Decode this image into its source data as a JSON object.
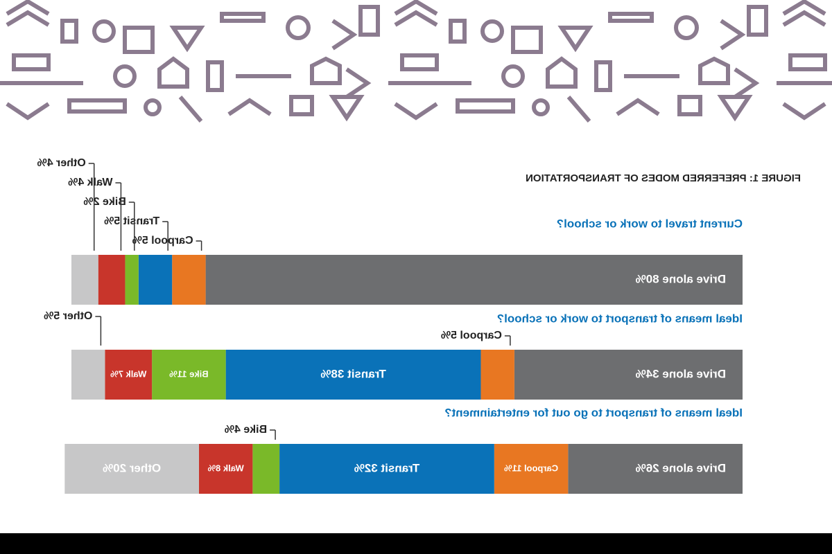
{
  "chart_data": {
    "type": "stacked_bar",
    "title": "FIGURE 1: PREFERRED MODES OF TRANSPORTATION",
    "categories": [
      "Current travel to work or school?",
      "Ideal means of transport to work or school?",
      "Ideal means of transport to go out for entertainment?"
    ],
    "series": [
      {
        "name": "Drive alone",
        "color": "#6d6e70",
        "values": [
          80,
          34,
          26
        ],
        "value_labels": [
          "Drive alone 80%",
          "Drive alone 34%",
          "Drive alone 26%"
        ]
      },
      {
        "name": "Carpool",
        "color": "#e87722",
        "values": [
          5,
          5,
          11
        ],
        "value_labels": [
          "Carpool 5%",
          "Carpool 5%",
          "Carpool 11%"
        ]
      },
      {
        "name": "Transit",
        "color": "#0a72b8",
        "values": [
          5,
          38,
          32
        ],
        "value_labels": [
          "Transit 5%",
          "Transit 38%",
          "Transit 32%"
        ]
      },
      {
        "name": "Bike",
        "color": "#7ab929",
        "values": [
          2,
          11,
          4
        ],
        "value_labels": [
          "Bike 2%",
          "Bike 11%",
          "Bike 4%"
        ]
      },
      {
        "name": "Walk",
        "color": "#c8352b",
        "values": [
          4,
          7,
          8
        ],
        "value_labels": [
          "Walk 4%",
          "Walk 7%",
          "Walk 8%"
        ]
      },
      {
        "name": "Other",
        "color": "#c7c7c8",
        "values": [
          4,
          5,
          20
        ],
        "value_labels": [
          "Other 4%",
          "Other 5%",
          "Other 20%"
        ]
      }
    ],
    "xlim": [
      0,
      100
    ]
  }
}
